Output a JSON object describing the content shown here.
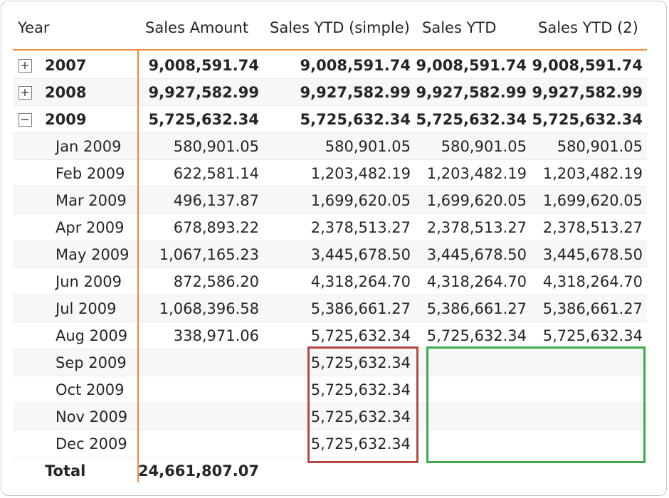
{
  "colors": {
    "accent_line": "#eb8b3c",
    "highlight_red": "#b8463e",
    "highlight_green": "#3cab4b"
  },
  "headers": {
    "year": "Year",
    "sales_amount": "Sales Amount",
    "sales_ytd_simple": "Sales YTD (simple)",
    "sales_ytd": "Sales YTD",
    "sales_ytd_2": "Sales YTD (2)"
  },
  "years": [
    {
      "label": "2007",
      "toggle": "expand",
      "sales_amount": "9,008,591.74",
      "ytd_simple": "9,008,591.74",
      "ytd": "9,008,591.74",
      "ytd2": "9,008,591.74"
    },
    {
      "label": "2008",
      "toggle": "expand",
      "sales_amount": "9,927,582.99",
      "ytd_simple": "9,927,582.99",
      "ytd": "9,927,582.99",
      "ytd2": "9,927,582.99"
    },
    {
      "label": "2009",
      "toggle": "collapse",
      "sales_amount": "5,725,632.34",
      "ytd_simple": "5,725,632.34",
      "ytd": "5,725,632.34",
      "ytd2": "5,725,632.34"
    }
  ],
  "months": [
    {
      "label": "Jan 2009",
      "sales_amount": "580,901.05",
      "ytd_simple": "580,901.05",
      "ytd": "580,901.05",
      "ytd2": "580,901.05"
    },
    {
      "label": "Feb 2009",
      "sales_amount": "622,581.14",
      "ytd_simple": "1,203,482.19",
      "ytd": "1,203,482.19",
      "ytd2": "1,203,482.19"
    },
    {
      "label": "Mar 2009",
      "sales_amount": "496,137.87",
      "ytd_simple": "1,699,620.05",
      "ytd": "1,699,620.05",
      "ytd2": "1,699,620.05"
    },
    {
      "label": "Apr 2009",
      "sales_amount": "678,893.22",
      "ytd_simple": "2,378,513.27",
      "ytd": "2,378,513.27",
      "ytd2": "2,378,513.27"
    },
    {
      "label": "May 2009",
      "sales_amount": "1,067,165.23",
      "ytd_simple": "3,445,678.50",
      "ytd": "3,445,678.50",
      "ytd2": "3,445,678.50"
    },
    {
      "label": "Jun 2009",
      "sales_amount": "872,586.20",
      "ytd_simple": "4,318,264.70",
      "ytd": "4,318,264.70",
      "ytd2": "4,318,264.70"
    },
    {
      "label": "Jul 2009",
      "sales_amount": "1,068,396.58",
      "ytd_simple": "5,386,661.27",
      "ytd": "5,386,661.27",
      "ytd2": "5,386,661.27"
    },
    {
      "label": "Aug 2009",
      "sales_amount": "338,971.06",
      "ytd_simple": "5,725,632.34",
      "ytd": "5,725,632.34",
      "ytd2": "5,725,632.34"
    },
    {
      "label": "Sep 2009",
      "sales_amount": "",
      "ytd_simple": "5,725,632.34",
      "ytd": "",
      "ytd2": ""
    },
    {
      "label": "Oct 2009",
      "sales_amount": "",
      "ytd_simple": "5,725,632.34",
      "ytd": "",
      "ytd2": ""
    },
    {
      "label": "Nov 2009",
      "sales_amount": "",
      "ytd_simple": "5,725,632.34",
      "ytd": "",
      "ytd2": ""
    },
    {
      "label": "Dec 2009",
      "sales_amount": "",
      "ytd_simple": "5,725,632.34",
      "ytd": "",
      "ytd2": ""
    }
  ],
  "total": {
    "label": "Total",
    "sales_amount": "24,661,807.07",
    "ytd_simple": "",
    "ytd": "",
    "ytd2": ""
  }
}
